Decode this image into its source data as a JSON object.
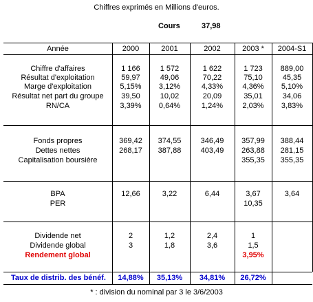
{
  "caption": "Chiffres exprimés en Millions d'euros.",
  "cours": {
    "label": "Cours",
    "value": "37,98"
  },
  "columns": {
    "label": "Année",
    "years": [
      "2000",
      "2001",
      "2002",
      "2003 *",
      "2004-S1"
    ]
  },
  "block1": [
    {
      "label": "Chiffre d'affaires",
      "values": [
        "1 166",
        "1 572",
        "1 622",
        "1 723",
        "889,00"
      ]
    },
    {
      "label": "Résultat d'exploitation",
      "values": [
        "59,97",
        "49,06",
        "70,22",
        "75,10",
        "45,35"
      ]
    },
    {
      "label": "Marge d'exploitation",
      "values": [
        "5,15%",
        "3,12%",
        "4,33%",
        "4,36%",
        "5,10%"
      ]
    },
    {
      "label": "Résultat net part du groupe",
      "values": [
        "39,50",
        "10,02",
        "20,09",
        "35,01",
        "34,06"
      ]
    },
    {
      "label": "RN/CA",
      "values": [
        "3,39%",
        "0,64%",
        "1,24%",
        "2,03%",
        "3,83%"
      ]
    }
  ],
  "block2": [
    {
      "label": "Fonds propres",
      "values": [
        "369,42",
        "374,55",
        "346,49",
        "357,99",
        "388,44"
      ]
    },
    {
      "label": "Dettes nettes",
      "values": [
        "268,17",
        "387,88",
        "403,49",
        "263,88",
        "281,15"
      ]
    },
    {
      "label": "Capitalisation boursière",
      "values": [
        "",
        "",
        "",
        "355,35",
        "355,35"
      ]
    }
  ],
  "block3": [
    {
      "label": "BPA",
      "values": [
        "12,66",
        "3,22",
        "6,44",
        "3,67",
        "3,64"
      ]
    },
    {
      "label": "PER",
      "values": [
        "",
        "",
        "",
        "10,35",
        ""
      ]
    }
  ],
  "block4": [
    {
      "label": "Dividende net",
      "values": [
        "2",
        "1,2",
        "2,4",
        "1",
        ""
      ]
    },
    {
      "label": "Dividende global",
      "values": [
        "3",
        "1,8",
        "3,6",
        "1,5",
        ""
      ]
    },
    {
      "label": "Rendement global",
      "values": [
        "",
        "",
        "",
        "3,95%",
        ""
      ]
    }
  ],
  "taux": {
    "label": "Taux de distrib. des bénéf.",
    "values": [
      "14,88%",
      "35,13%",
      "34,81%",
      "26,72%",
      ""
    ]
  },
  "footnote": "* : division du nominal par 3 le 3/6/2003",
  "colors": {
    "red": "#e00000",
    "blue": "#0000cc"
  }
}
